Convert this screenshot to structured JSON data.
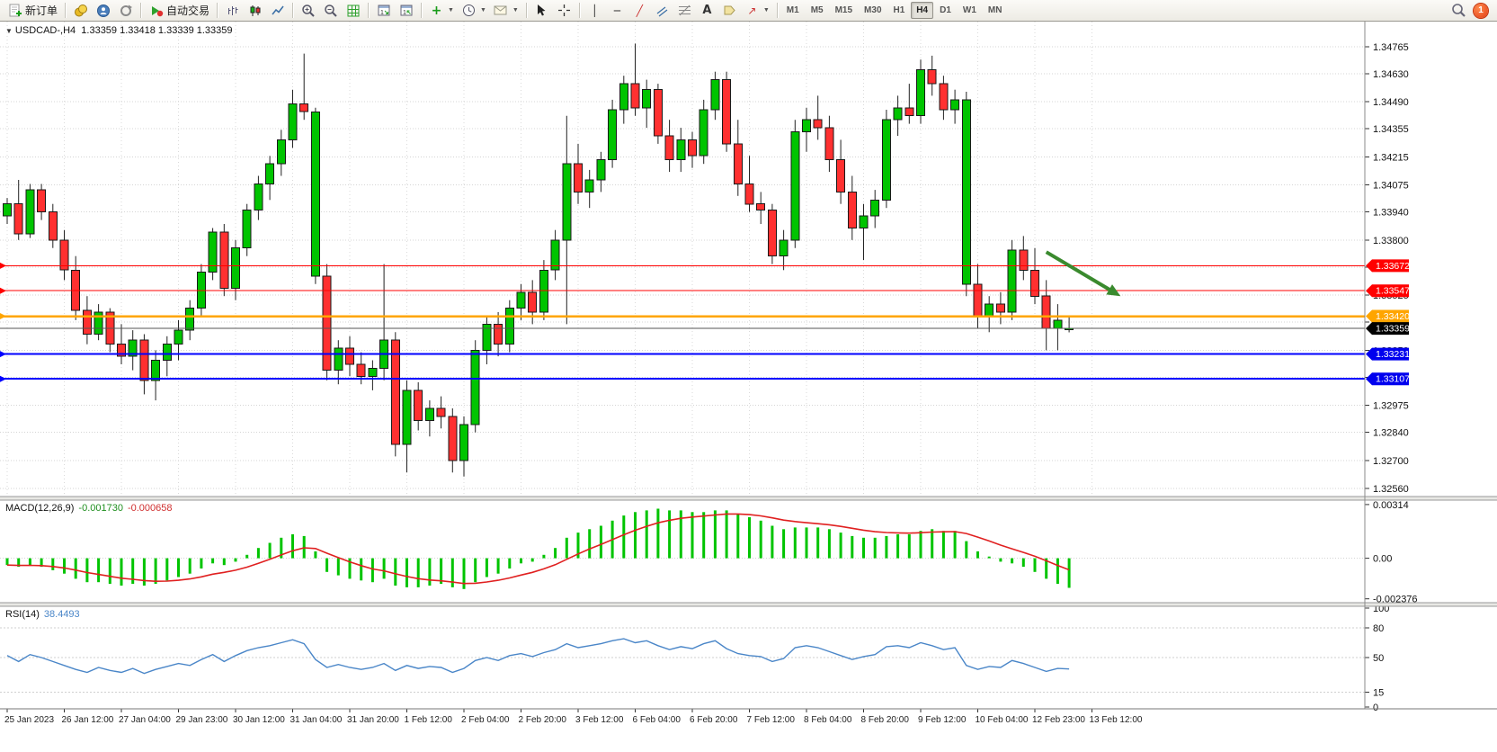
{
  "toolbar": {
    "new_order_label": "新订单",
    "auto_trading_label": "自动交易",
    "timeframes": [
      "M1",
      "M5",
      "M15",
      "M30",
      "H1",
      "H4",
      "D1",
      "W1",
      "MN"
    ],
    "active_timeframe": "H4",
    "notification_count": "1",
    "text_tool_label": "A"
  },
  "chart_header": {
    "symbol_period": "USDCAD-,H4",
    "ohlc": "1.33359 1.33418 1.33339 1.33359",
    "open": "1.33359",
    "high": "1.33418",
    "low": "1.33339",
    "close": "1.33359"
  },
  "indicators": {
    "macd_label": "MACD(12,26,9)",
    "macd_value1": "-0.001730",
    "macd_value2": "-0.000658",
    "rsi_label": "RSI(14)",
    "rsi_value": "38.4493"
  },
  "chart_data": {
    "type": "candlestick",
    "symbol": "USDCAD",
    "period": "H4",
    "price_range": [
      1.3252,
      1.3489
    ],
    "price_ticks": [
      "1.34765",
      "1.34630",
      "1.34490",
      "1.34355",
      "1.34215",
      "1.34075",
      "1.33940",
      "1.33800",
      "1.33665",
      "1.33525",
      "1.33390",
      "1.33250",
      "1.33115",
      "1.32975",
      "1.32840",
      "1.32700",
      "1.32560"
    ],
    "time_labels": [
      "25 Jan 2023",
      "26 Jan 12:00",
      "27 Jan 04:00",
      "29 Jan 23:00",
      "30 Jan 12:00",
      "31 Jan 04:00",
      "31 Jan 20:00",
      "1 Feb 12:00",
      "2 Feb 04:00",
      "2 Feb 20:00",
      "3 Feb 12:00",
      "6 Feb 04:00",
      "6 Feb 20:00",
      "7 Feb 12:00",
      "8 Feb 04:00",
      "8 Feb 20:00",
      "9 Feb 12:00",
      "10 Feb 04:00",
      "12 Feb 23:00",
      "13 Feb 12:00"
    ],
    "candles_per_label": 5,
    "up_color": "#00c400",
    "down_color": "#ff3030",
    "candles": [
      [
        1.3392,
        1.3401,
        1.3388,
        1.3398
      ],
      [
        1.3398,
        1.341,
        1.338,
        1.3383
      ],
      [
        1.3383,
        1.3408,
        1.3381,
        1.3405
      ],
      [
        1.3405,
        1.3408,
        1.339,
        1.3394
      ],
      [
        1.3394,
        1.3398,
        1.3376,
        1.338
      ],
      [
        1.338,
        1.3385,
        1.336,
        1.3365
      ],
      [
        1.3365,
        1.3372,
        1.334,
        1.3345
      ],
      [
        1.3345,
        1.3352,
        1.3328,
        1.3333
      ],
      [
        1.3333,
        1.3348,
        1.333,
        1.3344
      ],
      [
        1.3344,
        1.3346,
        1.3324,
        1.3328
      ],
      [
        1.3328,
        1.3338,
        1.3318,
        1.3322
      ],
      [
        1.3322,
        1.3335,
        1.3315,
        1.333
      ],
      [
        1.333,
        1.3333,
        1.3303,
        1.331
      ],
      [
        1.331,
        1.3325,
        1.33,
        1.332
      ],
      [
        1.332,
        1.3332,
        1.3312,
        1.3328
      ],
      [
        1.3328,
        1.334,
        1.332,
        1.3335
      ],
      [
        1.3335,
        1.335,
        1.333,
        1.3346
      ],
      [
        1.3346,
        1.3368,
        1.3342,
        1.3364
      ],
      [
        1.3364,
        1.3386,
        1.336,
        1.3384
      ],
      [
        1.3384,
        1.3388,
        1.3352,
        1.3356
      ],
      [
        1.3356,
        1.338,
        1.335,
        1.3376
      ],
      [
        1.3376,
        1.3398,
        1.3372,
        1.3395
      ],
      [
        1.3395,
        1.3412,
        1.339,
        1.3408
      ],
      [
        1.3408,
        1.3422,
        1.34,
        1.3418
      ],
      [
        1.3418,
        1.3435,
        1.3412,
        1.343
      ],
      [
        1.343,
        1.3455,
        1.3426,
        1.3448
      ],
      [
        1.3448,
        1.3473,
        1.344,
        1.3444
      ],
      [
        1.3444,
        1.3446,
        1.3358,
        1.3362,
        "g"
      ],
      [
        1.3362,
        1.3368,
        1.331,
        1.3315
      ],
      [
        1.3315,
        1.333,
        1.3308,
        1.3326
      ],
      [
        1.3326,
        1.3332,
        1.3312,
        1.3318
      ],
      [
        1.3318,
        1.3324,
        1.3308,
        1.3312
      ],
      [
        1.3312,
        1.332,
        1.3305,
        1.3316
      ],
      [
        1.3316,
        1.3368,
        1.331,
        1.333
      ],
      [
        1.333,
        1.3334,
        1.3272,
        1.3278
      ],
      [
        1.3278,
        1.331,
        1.3264,
        1.3305
      ],
      [
        1.3305,
        1.3309,
        1.3285,
        1.329
      ],
      [
        1.329,
        1.33,
        1.3282,
        1.3296
      ],
      [
        1.3296,
        1.3302,
        1.3286,
        1.3292
      ],
      [
        1.3292,
        1.3296,
        1.3264,
        1.327
      ],
      [
        1.327,
        1.3292,
        1.3262,
        1.3288
      ],
      [
        1.3288,
        1.333,
        1.3284,
        1.3325
      ],
      [
        1.3325,
        1.3342,
        1.3318,
        1.3338
      ],
      [
        1.3338,
        1.3344,
        1.3322,
        1.3328
      ],
      [
        1.3328,
        1.335,
        1.3324,
        1.3346
      ],
      [
        1.3346,
        1.3358,
        1.334,
        1.3354
      ],
      [
        1.3354,
        1.336,
        1.3338,
        1.3344
      ],
      [
        1.3344,
        1.337,
        1.334,
        1.3365
      ],
      [
        1.3365,
        1.3385,
        1.336,
        1.338
      ],
      [
        1.338,
        1.3442,
        1.3338,
        1.3418
      ],
      [
        1.3418,
        1.3428,
        1.3398,
        1.3404
      ],
      [
        1.3404,
        1.3415,
        1.3396,
        1.341
      ],
      [
        1.341,
        1.3424,
        1.3404,
        1.342
      ],
      [
        1.342,
        1.345,
        1.3416,
        1.3445
      ],
      [
        1.3445,
        1.3462,
        1.3438,
        1.3458
      ],
      [
        1.3458,
        1.3478,
        1.3442,
        1.3446
      ],
      [
        1.3446,
        1.346,
        1.3436,
        1.3455
      ],
      [
        1.3455,
        1.3458,
        1.3428,
        1.3432
      ],
      [
        1.3432,
        1.344,
        1.3414,
        1.342
      ],
      [
        1.342,
        1.3436,
        1.3414,
        1.343
      ],
      [
        1.343,
        1.3434,
        1.3416,
        1.3422
      ],
      [
        1.3422,
        1.345,
        1.3418,
        1.3445
      ],
      [
        1.3445,
        1.3464,
        1.344,
        1.346
      ],
      [
        1.346,
        1.3464,
        1.3424,
        1.3428
      ],
      [
        1.3428,
        1.344,
        1.3402,
        1.3408
      ],
      [
        1.3408,
        1.3422,
        1.3394,
        1.3398
      ],
      [
        1.3398,
        1.3404,
        1.3388,
        1.3395
      ],
      [
        1.3395,
        1.3398,
        1.3368,
        1.3372
      ],
      [
        1.3372,
        1.3385,
        1.3365,
        1.338
      ],
      [
        1.338,
        1.344,
        1.3376,
        1.3434
      ],
      [
        1.3434,
        1.3446,
        1.3424,
        1.344
      ],
      [
        1.344,
        1.3452,
        1.343,
        1.3436
      ],
      [
        1.3436,
        1.3442,
        1.3414,
        1.342
      ],
      [
        1.342,
        1.343,
        1.3398,
        1.3404
      ],
      [
        1.3404,
        1.3412,
        1.338,
        1.3386
      ],
      [
        1.3386,
        1.3398,
        1.337,
        1.3392
      ],
      [
        1.3392,
        1.3405,
        1.3386,
        1.34
      ],
      [
        1.34,
        1.3445,
        1.3396,
        1.344
      ],
      [
        1.344,
        1.3452,
        1.3432,
        1.3446
      ],
      [
        1.3446,
        1.3458,
        1.3438,
        1.3442
      ],
      [
        1.3442,
        1.347,
        1.3438,
        1.3465
      ],
      [
        1.3465,
        1.3472,
        1.3452,
        1.3458
      ],
      [
        1.3458,
        1.3462,
        1.344,
        1.3445
      ],
      [
        1.3445,
        1.3455,
        1.3438,
        1.345
      ],
      [
        1.345,
        1.3454,
        1.3352,
        1.3358,
        "g"
      ],
      [
        1.3358,
        1.3368,
        1.3336,
        1.3342
      ],
      [
        1.3342,
        1.3352,
        1.3334,
        1.3348
      ],
      [
        1.3348,
        1.3354,
        1.3338,
        1.3344
      ],
      [
        1.3344,
        1.338,
        1.334,
        1.3375
      ],
      [
        1.3375,
        1.3382,
        1.336,
        1.3365
      ],
      [
        1.3365,
        1.3376,
        1.3348,
        1.3352
      ],
      [
        1.3352,
        1.336,
        1.3325,
        1.3336
      ],
      [
        1.3336,
        1.3348,
        1.3325,
        1.334
      ],
      [
        1.33359,
        1.33418,
        1.33339,
        1.33359
      ]
    ],
    "hlines": [
      {
        "price": 1.33672,
        "color": "#ff0000",
        "width": 1,
        "label": "1.33672",
        "badge": "#ff0000"
      },
      {
        "price": 1.33547,
        "color": "#ff0000",
        "width": 1,
        "label": "1.33547",
        "badge": "#ff0000"
      },
      {
        "price": 1.3342,
        "color": "#ffa500",
        "width": 2.5,
        "label": "1.33420",
        "badge": "#ffa500"
      },
      {
        "price": 1.33231,
        "color": "#0000ff",
        "width": 2,
        "label": "1.33231",
        "badge": "#0000ee"
      },
      {
        "price": 1.33107,
        "color": "#0000ff",
        "width": 2,
        "label": "1.33107",
        "badge": "#0000ee"
      }
    ],
    "current_price": {
      "price": 1.33359,
      "label": "1.33359",
      "line_color": "#555555",
      "badge": "#000000"
    },
    "arrow": {
      "from_index": 91,
      "from_price": 1.3374,
      "to_index": 97.5,
      "to_price": 1.3352,
      "color": "#3a8a2e"
    },
    "macd": {
      "title": "MACD(12,26,9)",
      "histogram_color": "#00c400",
      "signal_color": "#e02020",
      "signal_period": 9,
      "scale": [
        -0.0026,
        0.0034
      ],
      "axis": [
        {
          "value": 0.00314,
          "label": "0.00314"
        },
        {
          "value": 0,
          "label": "0.00"
        },
        {
          "value": -0.002376,
          "label": "-0.002376"
        }
      ],
      "values": [
        -0.0004,
        -0.0005,
        -0.0004,
        -0.0005,
        -0.0007,
        -0.0009,
        -0.0012,
        -0.0014,
        -0.0014,
        -0.0015,
        -0.0016,
        -0.0015,
        -0.0016,
        -0.0015,
        -0.0013,
        -0.0011,
        -0.0009,
        -0.0006,
        -0.0003,
        -0.0004,
        -0.0002,
        0.0002,
        0.0006,
        0.0009,
        0.0012,
        0.0014,
        0.0013,
        0.0004,
        -0.0008,
        -0.001,
        -0.0012,
        -0.0013,
        -0.0014,
        -0.0012,
        -0.0016,
        -0.0017,
        -0.0017,
        -0.0016,
        -0.0015,
        -0.0017,
        -0.0018,
        -0.0014,
        -0.0011,
        -0.0009,
        -0.0006,
        -0.0003,
        -0.0002,
        0.0002,
        0.0006,
        0.0012,
        0.0015,
        0.0017,
        0.0019,
        0.0022,
        0.0025,
        0.0027,
        0.0028,
        0.0029,
        0.0028,
        0.0028,
        0.0027,
        0.0027,
        0.0028,
        0.0028,
        0.0026,
        0.0024,
        0.0022,
        0.0019,
        0.0017,
        0.0018,
        0.0018,
        0.0018,
        0.0017,
        0.0015,
        0.0013,
        0.0012,
        0.0012,
        0.0013,
        0.0014,
        0.0014,
        0.0016,
        0.0017,
        0.0016,
        0.0016,
        0.001,
        0.0004,
        0.0001,
        -0.0002,
        -0.0003,
        -0.0005,
        -0.0008,
        -0.0012,
        -0.0015,
        -0.00173
      ]
    },
    "rsi": {
      "title": "RSI(14)",
      "line_color": "#4a86c8",
      "levels": [
        80,
        50,
        15
      ],
      "axis": [
        {
          "value": 100,
          "label": "100"
        },
        {
          "value": 80,
          "label": "80"
        },
        {
          "value": 50,
          "label": "50"
        },
        {
          "value": 15,
          "label": "15"
        },
        {
          "value": 0,
          "label": "0"
        }
      ],
      "values": [
        52,
        46,
        53,
        50,
        46,
        42,
        38,
        35,
        40,
        37,
        35,
        39,
        34,
        38,
        41,
        44,
        42,
        48,
        53,
        46,
        52,
        57,
        60,
        62,
        65,
        68,
        64,
        48,
        40,
        43,
        40,
        38,
        40,
        44,
        37,
        42,
        39,
        41,
        40,
        35,
        39,
        47,
        50,
        47,
        52,
        54,
        51,
        55,
        58,
        64,
        60,
        62,
        64,
        67,
        69,
        65,
        67,
        62,
        58,
        61,
        59,
        64,
        67,
        59,
        54,
        52,
        51,
        46,
        49,
        60,
        62,
        60,
        56,
        52,
        48,
        51,
        53,
        61,
        62,
        60,
        65,
        62,
        58,
        60,
        42,
        38,
        41,
        40,
        47,
        44,
        40,
        36,
        39,
        38.4493
      ]
    }
  }
}
